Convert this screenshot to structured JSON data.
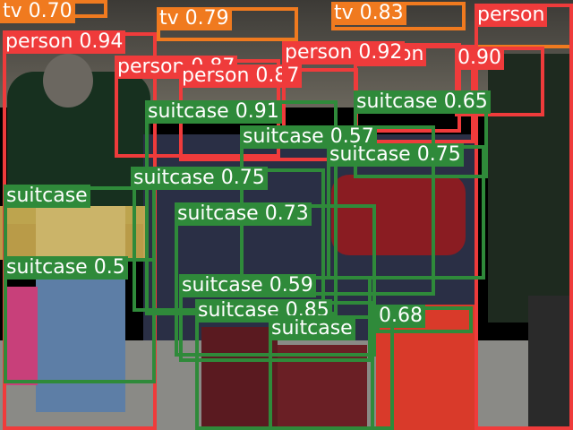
{
  "colors": {
    "person": "#ef3b3b",
    "suitcase": "#2f8a3a",
    "tv": "#f07a1f",
    "label_text": "#ffffff"
  },
  "detections": [
    {
      "cls": "tv",
      "label": "tv 0.70"
    },
    {
      "cls": "tv",
      "label": "tv 0.79"
    },
    {
      "cls": "tv",
      "label": "tv 0.83"
    },
    {
      "cls": "tv",
      "label": "tv"
    },
    {
      "cls": "person",
      "label": "person"
    },
    {
      "cls": "person",
      "label": "person 0.94"
    },
    {
      "cls": "person",
      "label": "person 0.87"
    },
    {
      "cls": "person",
      "label": "person 0.87"
    },
    {
      "cls": "person",
      "label": "person"
    },
    {
      "cls": "person",
      "label": "person 0.92"
    },
    {
      "cls": "person",
      "label": "0.90"
    },
    {
      "cls": "suitcase",
      "label": "suitcase 0.91"
    },
    {
      "cls": "suitcase",
      "label": "suitcase 0.65"
    },
    {
      "cls": "suitcase",
      "label": "suitcase 0.57"
    },
    {
      "cls": "suitcase",
      "label": "suitcase 0.75"
    },
    {
      "cls": "suitcase",
      "label": "suitcase 0.75"
    },
    {
      "cls": "suitcase",
      "label": "suitcase"
    },
    {
      "cls": "suitcase",
      "label": "suitcase 0.73"
    },
    {
      "cls": "suitcase",
      "label": "suitcase 0.5"
    },
    {
      "cls": "suitcase",
      "label": "suitcase 0.59"
    },
    {
      "cls": "suitcase",
      "label": "suitcase 0.85"
    },
    {
      "cls": "suitcase",
      "label": "suitcase"
    },
    {
      "cls": "suitcase",
      "label": "0.68"
    }
  ]
}
